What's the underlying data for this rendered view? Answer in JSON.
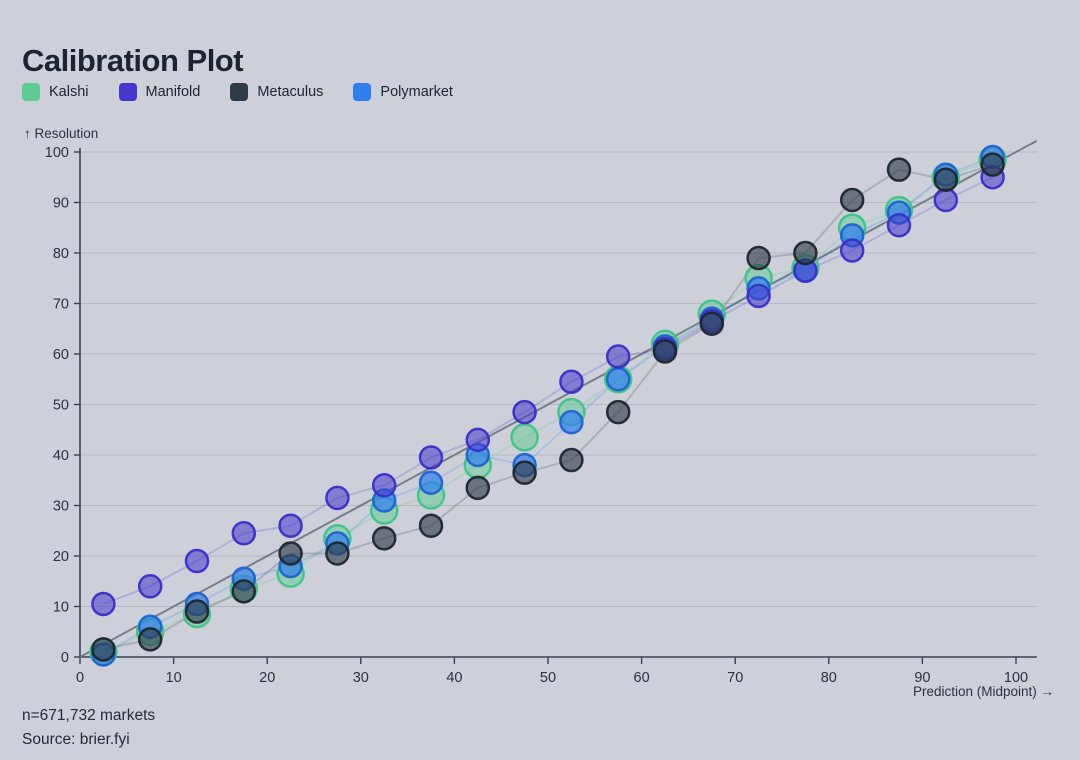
{
  "page": {
    "title": "Calibration Plot"
  },
  "axis": {
    "y_title": "↑ Resolution",
    "x_title": "Prediction (Midpoint) →"
  },
  "footer": {
    "n_markets": "n=671,732 markets",
    "source": "Source: brier.fyi"
  },
  "chart_data": {
    "type": "scatter",
    "title": "Calibration Plot",
    "xlabel": "Prediction (Midpoint) →",
    "ylabel": "↑ Resolution",
    "xlim": [
      0,
      100
    ],
    "ylim": [
      0,
      100
    ],
    "x_ticks": [
      0,
      10,
      20,
      30,
      40,
      50,
      60,
      70,
      80,
      90,
      100
    ],
    "y_ticks": [
      0,
      10,
      20,
      30,
      40,
      50,
      60,
      70,
      80,
      90,
      100
    ],
    "grid": "horizontal",
    "legend_position": "top-left",
    "background_color": "#cdd0d8",
    "reference_line": {
      "type": "diagonal",
      "from": [
        0,
        0
      ],
      "to": [
        100,
        100
      ],
      "color": "#6d7482"
    },
    "x": [
      2.5,
      7.5,
      12.5,
      17.5,
      22.5,
      27.5,
      32.5,
      37.5,
      42.5,
      47.5,
      52.5,
      57.5,
      62.5,
      67.5,
      72.5,
      77.5,
      82.5,
      87.5,
      92.5,
      97.5
    ],
    "series": [
      {
        "name": "Kalshi",
        "color": "#5fcb92",
        "stroke": "#3cc488",
        "values": [
          1,
          5,
          8.5,
          13.5,
          16.5,
          23.5,
          29,
          32,
          38,
          43.5,
          48.5,
          55,
          62,
          68,
          75,
          77,
          85,
          88.5,
          95,
          98.5
        ]
      },
      {
        "name": "Manifold",
        "color": "#4638cf",
        "stroke": "#3a2ec8",
        "values": [
          10.5,
          14,
          19,
          24.5,
          26,
          31.5,
          34,
          39.5,
          43,
          48.5,
          54.5,
          59.5,
          61,
          66.5,
          71.5,
          76.5,
          80.5,
          85.5,
          90.5,
          95
        ]
      },
      {
        "name": "Metaculus",
        "color": "#2e3a46",
        "stroke": "#1e2630",
        "values": [
          1.5,
          3.5,
          9,
          13,
          20.5,
          20.5,
          23.5,
          26,
          33.5,
          36.5,
          39,
          48.5,
          60.5,
          66,
          79,
          80,
          90.5,
          96.5,
          94.5,
          97.5
        ]
      },
      {
        "name": "Polymarket",
        "color": "#2f7ff0",
        "stroke": "#1e63d0",
        "values": [
          0.5,
          6,
          10.5,
          15.5,
          18,
          22.5,
          31,
          34.5,
          40,
          38,
          46.5,
          55,
          61.5,
          67,
          73,
          76.5,
          83.5,
          88,
          95.5,
          99
        ]
      }
    ]
  }
}
